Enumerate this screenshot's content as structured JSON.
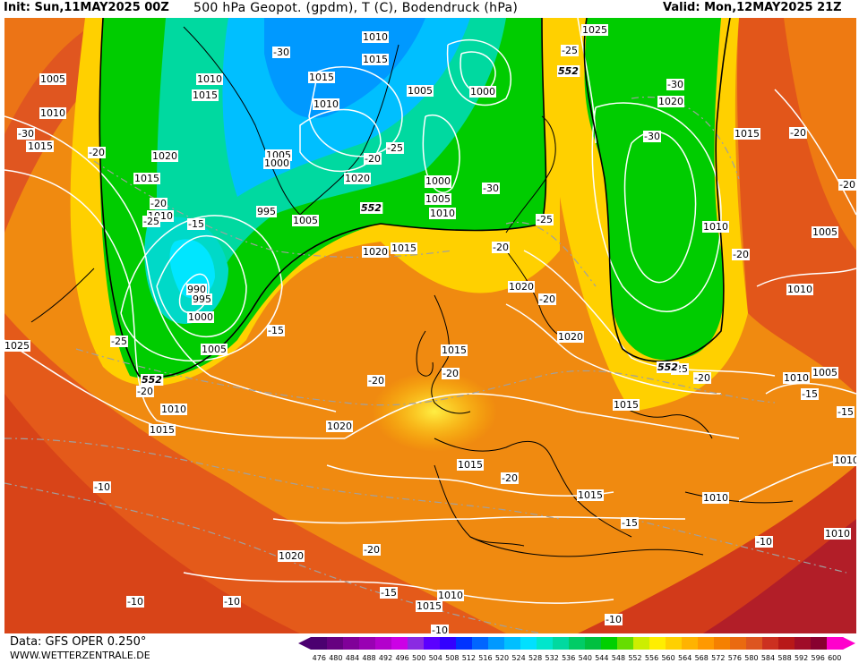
{
  "header": {
    "init": "Init: Sun,11MAY2025 00Z",
    "title": "500 hPa Geopot. (gpdm), T (C), Bodendruck (hPa)",
    "valid": "Valid: Mon,12MAY2025 21Z"
  },
  "footer": {
    "data_source": "Data: GFS OPER 0.250°",
    "website": "WWW.WETTERZENTRALE.DE"
  },
  "legend": {
    "ticks": [
      "476",
      "480",
      "484",
      "488",
      "492",
      "496",
      "500",
      "504",
      "508",
      "512",
      "516",
      "520",
      "524",
      "528",
      "532",
      "536",
      "540",
      "544",
      "548",
      "552",
      "556",
      "560",
      "564",
      "568",
      "572",
      "576",
      "580",
      "584",
      "588",
      "592",
      "596",
      "600"
    ],
    "colors": [
      "#4b0070",
      "#660080",
      "#800099",
      "#9900b3",
      "#b300cc",
      "#cc00e6",
      "#8a2be2",
      "#5b00ff",
      "#3300ff",
      "#0033ff",
      "#0066ff",
      "#0099ff",
      "#00bfff",
      "#00e0ff",
      "#00e6cc",
      "#00d9a0",
      "#00cc66",
      "#00c040",
      "#00d000",
      "#66dd00",
      "#ccee00",
      "#ffee00",
      "#ffd000",
      "#ffb300",
      "#ff9900",
      "#f58000",
      "#ea6a10",
      "#dd5520",
      "#cc3020",
      "#b81818",
      "#a00c28",
      "#880030",
      "#ff00cc"
    ]
  },
  "map": {
    "pressure_labels": [
      "1010",
      "1015",
      "1025",
      "1005",
      "1010",
      "1015",
      "1005",
      "1015",
      "1020",
      "1015",
      "1010",
      "1000",
      "1010",
      "1015",
      "1010",
      "1000",
      "1020",
      "1005",
      "1000",
      "1000",
      "1005",
      "1010",
      "1020",
      "1015",
      "995",
      "1005",
      "990",
      "995",
      "1000",
      "1005",
      "1025",
      "1010",
      "1015",
      "1020",
      "1020",
      "1015",
      "1015",
      "1020",
      "1015",
      "1015",
      "1020",
      "1010",
      "1010",
      "1005",
      "1005",
      "1010",
      "1010",
      "1015",
      "1015",
      "1010",
      "1010",
      "1020",
      "1010",
      "1015"
    ],
    "temperature_labels": [
      "-20",
      "-30",
      "-25",
      "-30",
      "-25",
      "-20",
      "-25",
      "-30",
      "-20",
      "-20",
      "-25",
      "-15",
      "-20",
      "-20",
      "-20",
      "-20",
      "-20",
      "-30",
      "-30",
      "-20",
      "-15",
      "-15",
      "-25",
      "-20",
      "-15",
      "-10",
      "-10",
      "-10",
      "-20",
      "-15",
      "-10",
      "-10",
      "-15",
      "-20",
      "-10",
      "-25",
      "-20"
    ],
    "contour_552_labels": [
      "552",
      "552",
      "552",
      "552"
    ]
  }
}
